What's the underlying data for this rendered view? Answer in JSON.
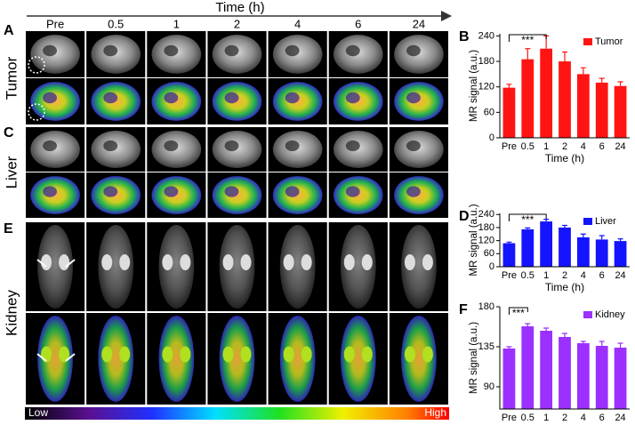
{
  "figure": {
    "time_axis_label": "Time (h)",
    "time_points": [
      "Pre",
      "0.5",
      "1",
      "2",
      "4",
      "6",
      "24"
    ],
    "panel_labels": [
      "A",
      "C",
      "E"
    ],
    "row_labels": [
      "Tumor",
      "Liver",
      "Kidney"
    ],
    "colorbar": {
      "low": "Low",
      "high": "High"
    }
  },
  "chart_data": [
    {
      "type": "bar",
      "panel": "B",
      "xlabel": "Time (h)",
      "ylabel": "MR signal (a.u.)",
      "legend": "upper right",
      "categories": [
        "Pre",
        "0.5",
        "1",
        "2",
        "4",
        "6",
        "24"
      ],
      "series": [
        {
          "name": "Tumor",
          "color": "#ff1414",
          "values": [
            118,
            185,
            210,
            180,
            150,
            130,
            122
          ],
          "errors": [
            8,
            25,
            30,
            22,
            15,
            10,
            10
          ]
        }
      ],
      "ylim": [
        0,
        245
      ],
      "yticks": [
        0,
        60,
        120,
        180,
        240
      ],
      "annotation": "***"
    },
    {
      "type": "bar",
      "panel": "D",
      "xlabel": "Time (h)",
      "ylabel": "MR signal (a.u.)",
      "legend": "upper right",
      "categories": [
        "Pre",
        "0.5",
        "1",
        "2",
        "4",
        "6",
        "24"
      ],
      "series": [
        {
          "name": "Liver",
          "color": "#1414ff",
          "values": [
            108,
            172,
            208,
            180,
            135,
            125,
            118
          ],
          "errors": [
            5,
            6,
            10,
            10,
            15,
            18,
            10
          ]
        }
      ],
      "ylim": [
        0,
        245
      ],
      "yticks": [
        0,
        60,
        120,
        180,
        240
      ],
      "annotation": "***"
    },
    {
      "type": "bar",
      "panel": "F",
      "xlabel": "Time (h)",
      "ylabel": "MR signal (a.u.)",
      "legend": "upper right",
      "categories": [
        "Pre",
        "0.5",
        "1",
        "2",
        "4",
        "6",
        "24"
      ],
      "series": [
        {
          "name": "Kidney",
          "color": "#9b30ff",
          "values": [
            133,
            158,
            153,
            146,
            139,
            136,
            134
          ],
          "errors": [
            2,
            3,
            3,
            4,
            2,
            5,
            5
          ]
        }
      ],
      "ylim": [
        65,
        180
      ],
      "yticks": [
        90,
        135,
        180
      ],
      "annotation": "***"
    }
  ]
}
